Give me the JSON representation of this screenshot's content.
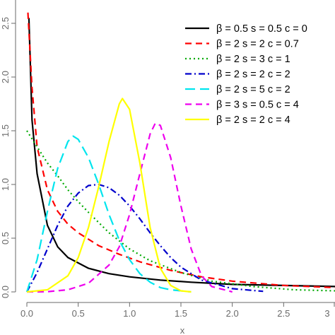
{
  "chart_data": {
    "type": "line",
    "title": "",
    "xlabel": "x",
    "ylabel": "",
    "xlim": [
      0,
      3
    ],
    "ylim": [
      0,
      2.5
    ],
    "x_ticks": [
      "0.0",
      "0.5",
      "1.0",
      "1.5",
      "2.0",
      "2.5",
      "3"
    ],
    "y_ticks": [
      "0.0",
      "0.5",
      "1.0",
      "1.5",
      "2.0",
      "2.5"
    ],
    "grid": false,
    "legend_position": "top-right",
    "series": [
      {
        "name": "β = 0.5   s = 0.5   c = 0",
        "color": "#000000",
        "dash": "solid",
        "x": [
          0.02,
          0.05,
          0.1,
          0.2,
          0.3,
          0.4,
          0.6,
          0.8,
          1.0,
          1.3,
          1.6,
          2.0,
          2.5,
          3.0
        ],
        "y": [
          2.55,
          1.6,
          1.1,
          0.62,
          0.42,
          0.32,
          0.22,
          0.17,
          0.14,
          0.11,
          0.09,
          0.07,
          0.06,
          0.05
        ]
      },
      {
        "name": "β = 2   s = 2   c = 0.7",
        "color": "#ff0000",
        "dash": "dashed",
        "x": [
          0.01,
          0.05,
          0.1,
          0.2,
          0.3,
          0.4,
          0.5,
          0.7,
          0.9,
          1.1,
          1.4,
          1.7,
          2.0,
          2.5,
          3.0
        ],
        "y": [
          2.6,
          1.9,
          1.35,
          0.95,
          0.75,
          0.63,
          0.55,
          0.43,
          0.35,
          0.28,
          0.2,
          0.14,
          0.1,
          0.06,
          0.04
        ]
      },
      {
        "name": "β = 2   s = 3   c = 1",
        "color": "#00aa00",
        "dash": "dotted",
        "x": [
          0.0,
          0.1,
          0.2,
          0.3,
          0.4,
          0.5,
          0.6,
          0.8,
          1.0,
          1.2,
          1.5,
          1.8,
          2.2,
          2.6,
          3.0
        ],
        "y": [
          1.5,
          1.35,
          1.2,
          1.08,
          0.95,
          0.84,
          0.74,
          0.55,
          0.4,
          0.29,
          0.18,
          0.1,
          0.05,
          0.02,
          0.01
        ]
      },
      {
        "name": "β = 2   s = 2   c = 2",
        "color": "#0000cc",
        "dash": "dashdot",
        "x": [
          0.0,
          0.1,
          0.2,
          0.3,
          0.4,
          0.5,
          0.6,
          0.7,
          0.8,
          0.9,
          1.0,
          1.1,
          1.2,
          1.3,
          1.4,
          1.5,
          1.7,
          2.0,
          2.3
        ],
        "y": [
          0.0,
          0.18,
          0.4,
          0.62,
          0.8,
          0.92,
          0.99,
          1.0,
          0.97,
          0.9,
          0.8,
          0.68,
          0.55,
          0.43,
          0.32,
          0.23,
          0.11,
          0.03,
          0.005
        ]
      },
      {
        "name": "β = 2   s = 5   c = 2",
        "color": "#00e5ee",
        "dash": "longdash",
        "x": [
          0.0,
          0.1,
          0.2,
          0.3,
          0.4,
          0.45,
          0.5,
          0.6,
          0.7,
          0.8,
          0.9,
          1.0,
          1.1,
          1.2,
          1.3,
          1.4,
          1.6
        ],
        "y": [
          0.0,
          0.3,
          0.75,
          1.15,
          1.4,
          1.45,
          1.42,
          1.25,
          1.0,
          0.72,
          0.48,
          0.3,
          0.17,
          0.09,
          0.04,
          0.02,
          0.0
        ]
      },
      {
        "name": "β = 3   s = 0.5   c = 4",
        "color": "#ee00ee",
        "dash": "dashed",
        "x": [
          0.0,
          0.2,
          0.4,
          0.6,
          0.8,
          0.9,
          1.0,
          1.1,
          1.2,
          1.25,
          1.3,
          1.4,
          1.5,
          1.6,
          1.7,
          1.8,
          2.0
        ],
        "y": [
          0.0,
          0.002,
          0.02,
          0.08,
          0.25,
          0.42,
          0.72,
          1.1,
          1.47,
          1.57,
          1.55,
          1.25,
          0.8,
          0.4,
          0.15,
          0.05,
          0.0
        ]
      },
      {
        "name": "β = 2   s = 2   c = 4",
        "color": "#ffff00",
        "dash": "solid",
        "x": [
          0.0,
          0.2,
          0.4,
          0.5,
          0.6,
          0.7,
          0.8,
          0.9,
          0.93,
          1.0,
          1.1,
          1.2,
          1.3,
          1.4,
          1.5,
          1.6
        ],
        "y": [
          0.0,
          0.02,
          0.15,
          0.32,
          0.6,
          0.98,
          1.4,
          1.75,
          1.8,
          1.7,
          1.2,
          0.6,
          0.22,
          0.06,
          0.01,
          0.0
        ]
      }
    ]
  }
}
